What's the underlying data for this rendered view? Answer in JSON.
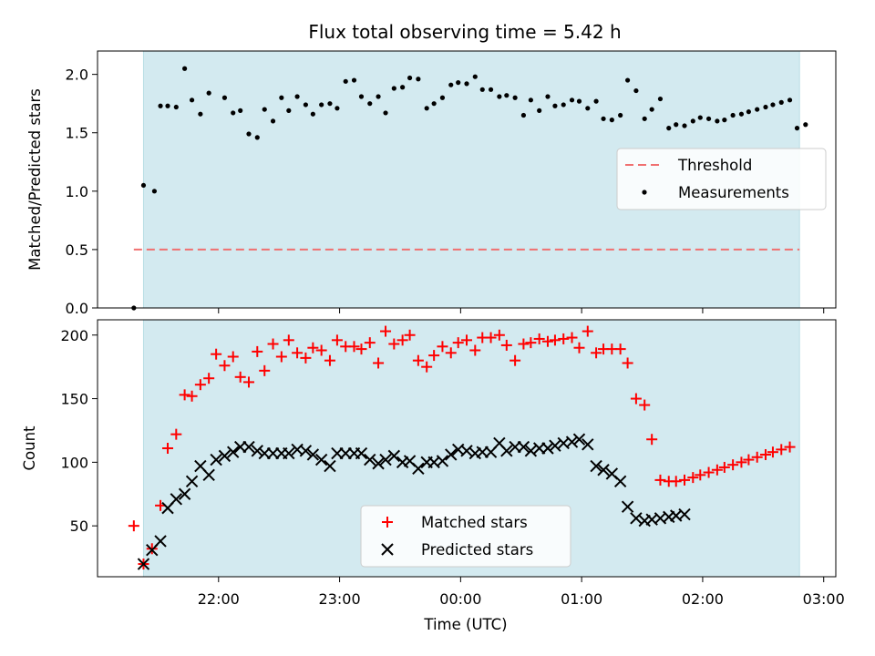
{
  "chart_data": {
    "title": "Flux total observing time = 5.42 h",
    "xlabel": "Time (UTC)",
    "x_tick_labels": [
      "22:00",
      "23:00",
      "00:00",
      "01:00",
      "02:00",
      "03:00"
    ],
    "x_tick_values_hours": [
      22,
      23,
      24,
      25,
      26,
      27
    ],
    "x_range_hours": [
      21.0,
      27.1
    ],
    "shaded_interval_hours": [
      21.38,
      26.8
    ],
    "colors": {
      "shade": "#d3eaf0",
      "threshold": "#f07070",
      "matched": "#ff0000",
      "predicted": "#000000",
      "measurements": "#000000"
    },
    "top_panel": {
      "type": "scatter",
      "ylabel": "Matched/Predicted stars",
      "ylim": [
        0,
        2.2
      ],
      "y_ticks": [
        "0.0",
        "0.5",
        "1.0",
        "1.5",
        "2.0"
      ],
      "y_tick_values": [
        0,
        0.5,
        1.0,
        1.5,
        2.0
      ],
      "threshold": {
        "value": 0.5,
        "x_range_hours": [
          21.3,
          26.8
        ]
      },
      "legend": {
        "placement": "center-right",
        "threshold_label": "Threshold",
        "measurements_label": "Measurements"
      },
      "measurements": {
        "x": [
          21.3,
          21.38,
          21.47,
          21.52,
          21.58,
          21.65,
          21.72,
          21.78,
          21.85,
          21.92,
          22.05,
          22.12,
          22.18,
          22.25,
          22.32,
          22.38,
          22.45,
          22.52,
          22.58,
          22.65,
          22.72,
          22.78,
          22.85,
          22.92,
          22.98,
          23.05,
          23.12,
          23.18,
          23.25,
          23.32,
          23.38,
          23.45,
          23.52,
          23.58,
          23.65,
          23.72,
          23.78,
          23.85,
          23.92,
          23.98,
          24.05,
          24.12,
          24.18,
          24.25,
          24.32,
          24.38,
          24.45,
          24.52,
          24.58,
          24.65,
          24.72,
          24.78,
          24.85,
          24.92,
          24.98,
          25.05,
          25.12,
          25.18,
          25.25,
          25.32,
          25.38,
          25.45,
          25.52,
          25.58,
          25.65,
          25.72,
          25.78,
          25.85,
          25.92,
          25.98,
          26.05,
          26.12,
          26.18,
          26.25,
          26.32,
          26.38,
          26.45,
          26.52,
          26.58,
          26.65,
          26.72,
          26.78,
          26.85
        ],
        "y": [
          0.0,
          1.05,
          1.0,
          1.73,
          1.73,
          1.72,
          2.05,
          1.78,
          1.66,
          1.84,
          1.8,
          1.67,
          1.69,
          1.49,
          1.46,
          1.7,
          1.6,
          1.8,
          1.69,
          1.81,
          1.74,
          1.66,
          1.74,
          1.75,
          1.71,
          1.94,
          1.95,
          1.81,
          1.75,
          1.81,
          1.67,
          1.88,
          1.89,
          1.97,
          1.96,
          1.71,
          1.75,
          1.8,
          1.91,
          1.93,
          1.92,
          1.98,
          1.87,
          1.87,
          1.81,
          1.82,
          1.8,
          1.65,
          1.78,
          1.69,
          1.81,
          1.73,
          1.74,
          1.78,
          1.77,
          1.71,
          1.77,
          1.62,
          1.61,
          1.65,
          1.95,
          1.86,
          1.62,
          1.7,
          1.79,
          1.54,
          1.57,
          1.56,
          1.6,
          1.63,
          1.62,
          1.6,
          1.61,
          1.65,
          1.66,
          1.68,
          1.7,
          1.72,
          1.74,
          1.76,
          1.78,
          1.54,
          1.57
        ]
      }
    },
    "bottom_panel": {
      "type": "scatter",
      "ylabel": "Count",
      "ylim": [
        10,
        212
      ],
      "y_ticks": [
        "50",
        "100",
        "150",
        "200"
      ],
      "y_tick_values": [
        50,
        100,
        150,
        200
      ],
      "legend": {
        "placement": "lower-center",
        "matched_label": "Matched stars",
        "predicted_label": "Predicted stars"
      },
      "series": [
        {
          "name": "Matched stars",
          "x": [
            21.3,
            21.38,
            21.45,
            21.52,
            21.58,
            21.65,
            21.72,
            21.78,
            21.85,
            21.92,
            21.98,
            22.05,
            22.12,
            22.18,
            22.25,
            22.32,
            22.38,
            22.45,
            22.52,
            22.58,
            22.65,
            22.72,
            22.78,
            22.85,
            22.92,
            22.98,
            23.05,
            23.12,
            23.18,
            23.25,
            23.32,
            23.38,
            23.45,
            23.52,
            23.58,
            23.65,
            23.72,
            23.78,
            23.85,
            23.92,
            23.98,
            24.05,
            24.12,
            24.18,
            24.25,
            24.32,
            24.38,
            24.45,
            24.52,
            24.58,
            24.65,
            24.72,
            24.78,
            24.85,
            24.92,
            24.98,
            25.05,
            25.12,
            25.18,
            25.25,
            25.32,
            25.38,
            25.45,
            25.52,
            25.58,
            25.65,
            25.72,
            25.78,
            25.85,
            25.92,
            25.98,
            26.05,
            26.12,
            26.18,
            26.25,
            26.32,
            26.38,
            26.45,
            26.52,
            26.58,
            26.65,
            26.72
          ],
          "y": [
            50,
            20,
            32,
            66,
            111,
            122,
            153,
            152,
            161,
            166,
            185,
            176,
            183,
            167,
            163,
            187,
            172,
            193,
            183,
            196,
            186,
            182,
            190,
            188,
            180,
            196,
            191,
            191,
            189,
            194,
            178,
            203,
            193,
            196,
            200,
            180,
            175,
            184,
            191,
            186,
            194,
            196,
            188,
            198,
            198,
            200,
            192,
            180,
            193,
            194,
            197,
            195,
            196,
            197,
            198,
            190,
            203,
            186,
            189,
            189,
            189,
            178,
            150,
            145,
            118,
            86,
            85,
            85,
            86,
            88,
            90,
            92,
            94,
            96,
            98,
            100,
            102,
            104,
            106,
            108,
            110,
            112
          ],
          "marker": "plus"
        },
        {
          "name": "Predicted stars",
          "x": [
            21.38,
            21.45,
            21.52,
            21.58,
            21.65,
            21.72,
            21.78,
            21.85,
            21.92,
            21.98,
            22.05,
            22.12,
            22.18,
            22.25,
            22.32,
            22.38,
            22.45,
            22.52,
            22.58,
            22.65,
            22.72,
            22.78,
            22.85,
            22.92,
            22.98,
            23.05,
            23.12,
            23.18,
            23.25,
            23.32,
            23.38,
            23.45,
            23.52,
            23.58,
            23.65,
            23.72,
            23.78,
            23.85,
            23.92,
            23.98,
            24.05,
            24.12,
            24.18,
            24.25,
            24.32,
            24.38,
            24.45,
            24.52,
            24.58,
            24.65,
            24.72,
            24.78,
            24.85,
            24.92,
            24.98,
            25.05,
            25.12,
            25.18,
            25.25,
            25.32,
            25.38,
            25.45,
            25.52,
            25.58,
            25.65,
            25.72,
            25.78,
            25.85
          ],
          "y": [
            20,
            31,
            38,
            64,
            71,
            75,
            85,
            97,
            90,
            102,
            105,
            108,
            112,
            112,
            109,
            107,
            107,
            107,
            107,
            110,
            109,
            106,
            102,
            97,
            107,
            107,
            107,
            107,
            102,
            99,
            102,
            105,
            100,
            101,
            95,
            100,
            100,
            101,
            106,
            110,
            109,
            107,
            108,
            108,
            115,
            109,
            112,
            112,
            109,
            111,
            111,
            113,
            115,
            116,
            118,
            114,
            97,
            94,
            91,
            85,
            65,
            56,
            54,
            55,
            56,
            57,
            58,
            59
          ],
          "marker": "x"
        }
      ]
    }
  }
}
